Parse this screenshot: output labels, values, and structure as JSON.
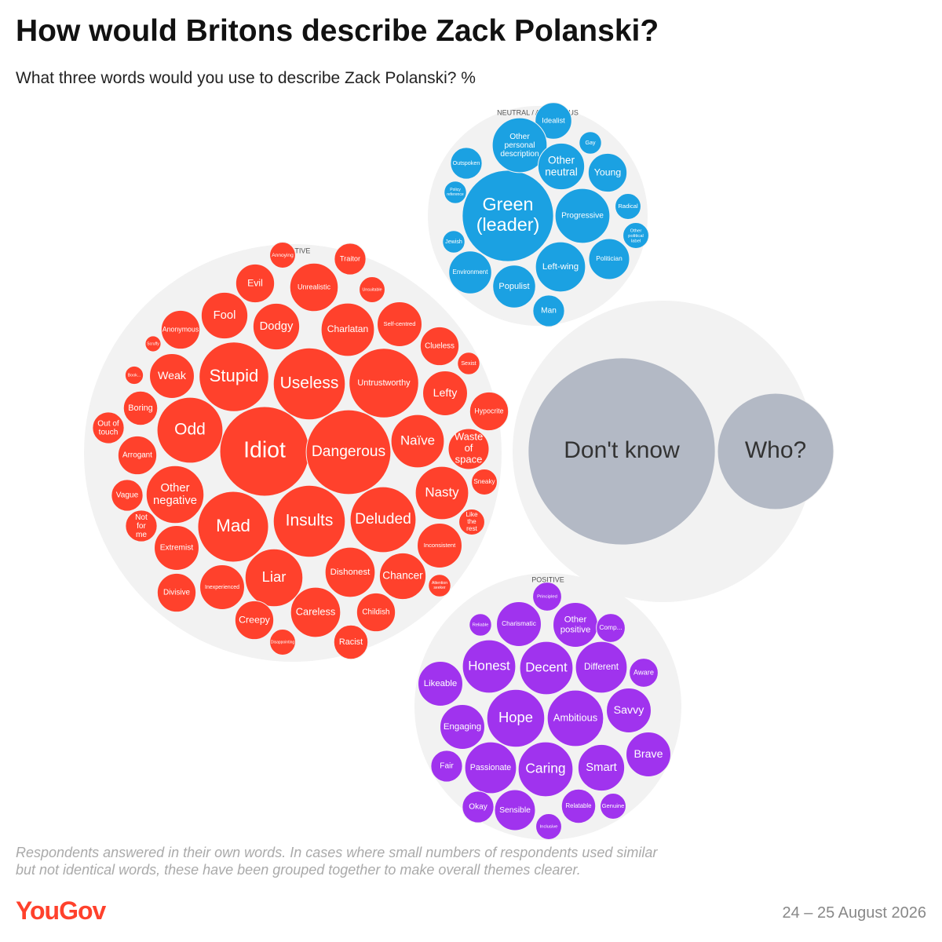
{
  "chart_data": {
    "type": "bubble",
    "title": "How would Britons describe Zack Polanski?",
    "subtitle": "What three words would you use to describe Zack Polanski? %",
    "note": "Respondents answered in their own words. In cases where small numbers of respondents used similar but not identical words, these have been grouped together to make overall themes clearer.",
    "groups": [
      {
        "name": "NEUTRAL / AMBIGUOUS",
        "color": "#1ba1e2",
        "labels": [
          "Green (leader)",
          "Idealist",
          "Other personal description",
          "Gay",
          "Other neutral",
          "Young",
          "Outspoken",
          "Policy reference",
          "Progressive",
          "Radical",
          "Other political label",
          "Jewish",
          "Politician",
          "Left-wing",
          "Environment",
          "Populist",
          "Man"
        ],
        "values": [
          5.0,
          0.8,
          1.8,
          0.3,
          1.3,
          0.9,
          0.6,
          0.3,
          1.8,
          0.4,
          0.4,
          0.3,
          1.0,
          1.5,
          1.1,
          1.1,
          0.6
        ]
      },
      {
        "name": "NEGATIVE",
        "color": "#ff412c",
        "labels": [
          "Idiot",
          "Dangerous",
          "Useless",
          "Insults",
          "Untrustworthy",
          "Stupid",
          "Mad",
          "Odd",
          "Deluded",
          "Liar",
          "Naïve",
          "Nasty",
          "Other negative",
          "Dodgy",
          "Charlatan",
          "Fool",
          "Weak",
          "Lefty",
          "Evil",
          "Unrealistic",
          "Self-centred",
          "Dishonest",
          "Chancer",
          "Careless",
          "Extremist",
          "Inexperienced",
          "Divisive",
          "Creepy",
          "Racist",
          "Childish",
          "Inconsistent",
          "Waste of space",
          "Hypocrite",
          "Clueless",
          "Anonymous",
          "Traitor",
          "Annoying",
          "Unsuitable",
          "Sexist",
          "Boring",
          "Arrogant",
          "Vague",
          "Out of touch",
          "Not for me",
          "Book...",
          "Scruffy",
          "Sneaky",
          "Like the rest",
          "Attention seeker",
          "Disappointing"
        ],
        "values": [
          4.8,
          4.3,
          3.1,
          3.1,
          2.9,
          2.9,
          3.0,
          2.6,
          2.6,
          2.0,
          1.7,
          1.7,
          2.0,
          1.3,
          1.7,
          1.3,
          1.2,
          1.2,
          0.9,
          1.4,
          1.2,
          1.5,
          1.3,
          1.5,
          1.2,
          1.2,
          0.9,
          0.9,
          0.7,
          0.9,
          1.2,
          1.0,
          0.9,
          0.9,
          0.9,
          0.6,
          0.4,
          0.4,
          0.3,
          0.7,
          0.9,
          0.6,
          0.6,
          0.6,
          0.2,
          0.15,
          0.4,
          0.4,
          0.3,
          0.4
        ]
      },
      {
        "color": "#b3b9c5",
        "labels": [
          "Don't know",
          "Who?"
        ],
        "values": [
          21,
          8.1
        ]
      },
      {
        "name": "POSITIVE",
        "color": "#a033ee",
        "labels": [
          "Principled",
          "Reliable",
          "Charismatic",
          "Other positive",
          "Comp...",
          "Honest",
          "Decent",
          "Different",
          "Aware",
          "Likeable",
          "Hope",
          "Ambitious",
          "Savvy",
          "Engaging",
          "Brave",
          "Fair",
          "Passionate",
          "Caring",
          "Smart",
          "Okay",
          "Sensible",
          "Relatable",
          "Genuine",
          "Inclusive"
        ],
        "values": [
          0.5,
          0.3,
          1.2,
          1.2,
          0.5,
          1.7,
          1.7,
          1.6,
          0.5,
          1.2,
          2.0,
          1.9,
          1.2,
          1.2,
          1.2,
          0.6,
          1.6,
          1.8,
          1.3,
          0.6,
          1.0,
          0.7,
          0.4,
          0.4
        ]
      }
    ]
  },
  "footer": {
    "logo": "YouGov",
    "date": "24 – 25 August 2026"
  }
}
